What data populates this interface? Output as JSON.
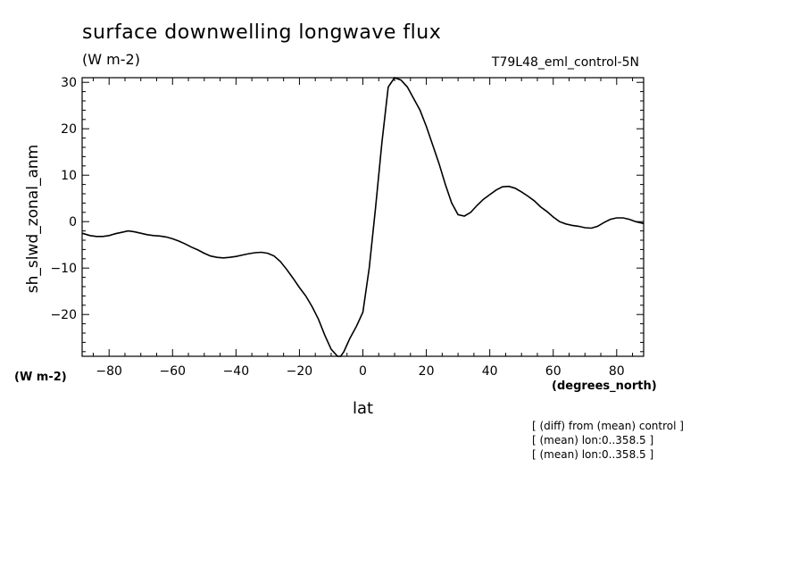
{
  "chart_data": {
    "type": "line",
    "title": "surface downwelling longwave flux",
    "units": "(W m-2)",
    "dataset": "T79L48_eml_control-5N",
    "xlabel": "lat",
    "xlabel_units": "(degrees_north)",
    "ylabel": "sh_slwd_zonal_anm",
    "ylabel_units": "(W m-2)",
    "xlim": [
      -88.5,
      88.5
    ],
    "ylim": [
      -29,
      31
    ],
    "xticks": [
      -80,
      -60,
      -40,
      -20,
      0,
      20,
      40,
      60,
      80
    ],
    "yticks": [
      -20,
      -10,
      0,
      10,
      20,
      30
    ],
    "grid": false,
    "series": [
      {
        "x": [
          -88.5,
          -86,
          -84,
          -82,
          -80,
          -78,
          -76,
          -74,
          -72,
          -70,
          -68,
          -66,
          -64,
          -62,
          -60,
          -58,
          -56,
          -54,
          -52,
          -50,
          -48,
          -46,
          -44,
          -42,
          -40,
          -38,
          -36,
          -34,
          -32,
          -30,
          -28,
          -26,
          -24,
          -22,
          -20,
          -18,
          -16,
          -14,
          -12,
          -10,
          -8,
          -7,
          -6,
          -5,
          -4,
          -2,
          0,
          2,
          4,
          6,
          8,
          10,
          12,
          14,
          16,
          18,
          20,
          22,
          24,
          26,
          28,
          30,
          32,
          34,
          36,
          38,
          40,
          42,
          44,
          46,
          48,
          50,
          52,
          54,
          56,
          58,
          60,
          62,
          64,
          66,
          68,
          70,
          72,
          74,
          76,
          78,
          80,
          82,
          84,
          86,
          88.5
        ],
        "y": [
          -2.5,
          -3.0,
          -3.2,
          -3.2,
          -3.0,
          -2.6,
          -2.3,
          -2.0,
          -2.2,
          -2.5,
          -2.8,
          -3.0,
          -3.1,
          -3.3,
          -3.7,
          -4.2,
          -4.8,
          -5.5,
          -6.1,
          -6.8,
          -7.4,
          -7.7,
          -7.8,
          -7.7,
          -7.5,
          -7.2,
          -6.9,
          -6.7,
          -6.6,
          -6.8,
          -7.4,
          -8.6,
          -10.3,
          -12.2,
          -14.2,
          -16.0,
          -18.3,
          -21.0,
          -24.5,
          -27.5,
          -29.0,
          -29.0,
          -28.0,
          -26.5,
          -25.0,
          -22.5,
          -19.5,
          -10.0,
          3.0,
          17.0,
          29.0,
          31.0,
          30.5,
          29.0,
          26.5,
          24.0,
          20.5,
          16.5,
          12.5,
          8.0,
          4.0,
          1.5,
          1.2,
          2.0,
          3.5,
          4.8,
          5.8,
          6.8,
          7.5,
          7.6,
          7.2,
          6.4,
          5.5,
          4.5,
          3.2,
          2.2,
          1.0,
          0.0,
          -0.5,
          -0.8,
          -1.0,
          -1.3,
          -1.4,
          -1.0,
          -0.2,
          0.5,
          0.8,
          0.8,
          0.5,
          0.0,
          -0.4
        ]
      }
    ]
  },
  "notes": [
    "[ (diff) from (mean) control ]",
    "[ (mean) lon:0..358.5 ]",
    "[ (mean) lon:0..358.5 ]"
  ],
  "colors": {
    "line": "#000000",
    "background": "#ffffff"
  }
}
